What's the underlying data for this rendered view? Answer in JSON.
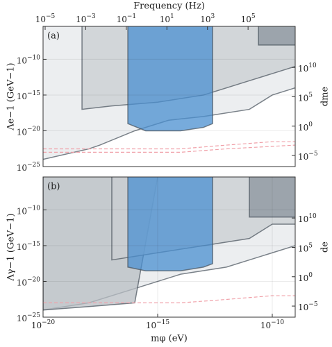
{
  "chart_data": [
    {
      "type": "area",
      "annotation": "(a)",
      "ylabel": "Λe−1 (GeV−1)",
      "y2label": "dme",
      "x2label": "Frequency (Hz)",
      "xlim": [
        1e-20,
        1e-09
      ],
      "ylim": [
        1e-25,
        4e-06
      ],
      "y2lim": [
        1.3e-07,
        1e+17
      ],
      "x2lim": [
        7.9e-06,
        21000000.0
      ],
      "log": true,
      "grid": true,
      "yticks": [
        {
          "value": 1e-25,
          "label": "10−25"
        },
        {
          "value": 1e-20,
          "label": "10−20"
        },
        {
          "value": 1e-15,
          "label": "10−15"
        },
        {
          "value": 1e-10,
          "label": "10−10"
        }
      ],
      "y2ticks": [
        {
          "value": 1e-05,
          "label": "10−5"
        },
        {
          "value": 1,
          "label": "100"
        },
        {
          "value": 100000.0,
          "label": "105"
        },
        {
          "value": 10000000000.0,
          "label": "1010"
        }
      ],
      "x2ticks": [
        {
          "value": 1e-05,
          "label": "10−5"
        },
        {
          "value": 0.001,
          "label": "10−3"
        },
        {
          "value": 0.1,
          "label": "10−1"
        },
        {
          "value": 10,
          "label": "101"
        },
        {
          "value": 1000,
          "label": "103"
        },
        {
          "value": 100000.0,
          "label": "105"
        }
      ],
      "series": [
        {
          "color": "#e6e8eb",
          "fill": true,
          "x": [
            1e-20,
            1e-18,
            3e-18,
            1e-16,
            3e-15,
            1e-13,
            1e-11,
            1e-10,
            1e-09
          ],
          "values": [
            1e-24,
            3e-23,
            1e-22,
            1e-20,
            3e-19,
            1e-18,
            1e-17,
            1e-15,
            1e-14
          ]
        },
        {
          "color": "#c9cdd2",
          "fill": true,
          "x": [
            5e-19,
            5e-19,
            1e-17,
            1e-15,
            1e-13,
            1e-11,
            1e-10,
            1e-09
          ],
          "values": [
            4e-06,
            1e-17,
            3e-17,
            1e-16,
            1e-15,
            1e-13,
            1e-12,
            1e-11
          ]
        },
        {
          "color": "#4a8fd0",
          "fill": true,
          "x": [
            5e-17,
            5e-17,
            3e-16,
            1e-14,
            1e-13,
            2.5e-13,
            2.5e-13
          ],
          "values": [
            4e-06,
            1e-19,
            1e-20,
            1e-20,
            3e-20,
            1e-19,
            4e-06
          ]
        },
        {
          "color": "#8a939c",
          "fill": true,
          "x": [
            2.5e-11,
            2.5e-11,
            1e-09
          ],
          "values": [
            4e-06,
            1e-08,
            1e-08
          ]
        },
        {
          "color": "#f0a0a8",
          "dashed": true,
          "x": [
            1e-20,
            1e-14,
            1e-12,
            1e-10,
            1e-09
          ],
          "values": [
            3e-23,
            3e-23,
            1e-22,
            3e-22,
            3e-22
          ]
        },
        {
          "color": "#f0a0a8",
          "dashed": true,
          "x": [
            1e-20,
            1e-14,
            1e-12,
            1e-09
          ],
          "values": [
            1e-23,
            1e-23,
            3e-23,
            1e-22
          ]
        }
      ]
    },
    {
      "type": "area",
      "annotation": "(b)",
      "ylabel": "Λγ−1 (GeV−1)",
      "y2label": "de",
      "xlabel": "mφ (eV)",
      "xlim": [
        1e-20,
        1e-09
      ],
      "ylim": [
        1e-25,
        4e-06
      ],
      "y2lim": [
        1.3e-07,
        1e+17
      ],
      "log": true,
      "grid": true,
      "xticks": [
        {
          "value": 1e-20,
          "label": "10−20"
        },
        {
          "value": 1e-15,
          "label": "10−15"
        },
        {
          "value": 1e-10,
          "label": "10−10"
        }
      ],
      "yticks": [
        {
          "value": 1e-25,
          "label": "10−25"
        },
        {
          "value": 1e-20,
          "label": "10−20"
        },
        {
          "value": 1e-15,
          "label": "10−15"
        },
        {
          "value": 1e-10,
          "label": "10−10"
        }
      ],
      "y2ticks": [
        {
          "value": 1e-05,
          "label": "10−5"
        },
        {
          "value": 1,
          "label": "100"
        },
        {
          "value": 100000.0,
          "label": "105"
        },
        {
          "value": 10000000000.0,
          "label": "1010"
        }
      ],
      "series": [
        {
          "color": "#e6e8eb",
          "fill": true,
          "x": [
            1e-20,
            1e-18,
            1e-16,
            1e-14,
            1e-12,
            1e-10,
            1e-09
          ],
          "values": [
            1e-24,
            1e-23,
            1e-21,
            1e-19,
            1e-18,
            1e-16,
            1e-15
          ]
        },
        {
          "color": "#b8bdc3",
          "fill": true,
          "x": [
            1e-20,
            1e-20,
            1e-18,
            1e-16,
            1e-15
          ],
          "values": [
            4e-06,
            1e-24,
            3e-24,
            1e-23,
            4e-06
          ]
        },
        {
          "color": "#c9cdd2",
          "fill": true,
          "x": [
            1e-17,
            1e-17,
            1e-15,
            1e-13,
            1e-11,
            1e-10,
            1e-09
          ],
          "values": [
            4e-06,
            1e-17,
            1e-16,
            1e-15,
            1e-14,
            1e-12,
            1e-12
          ]
        },
        {
          "color": "#4a8fd0",
          "fill": true,
          "x": [
            5e-17,
            5e-17,
            3e-16,
            1e-14,
            1e-13,
            2.5e-13,
            2.5e-13
          ],
          "values": [
            4e-06,
            1e-18,
            3e-19,
            3e-19,
            1e-18,
            3e-18,
            4e-06
          ]
        },
        {
          "color": "#8a939c",
          "fill": true,
          "x": [
            1e-11,
            1e-11,
            1e-09
          ],
          "values": [
            4e-06,
            1e-11,
            1e-11
          ]
        },
        {
          "color": "#f0a0a8",
          "dashed": true,
          "x": [
            1e-20,
            1e-14,
            1e-12,
            1e-10,
            1e-09
          ],
          "values": [
            1e-23,
            1e-23,
            3e-23,
            1e-22,
            1e-22
          ]
        }
      ]
    }
  ]
}
